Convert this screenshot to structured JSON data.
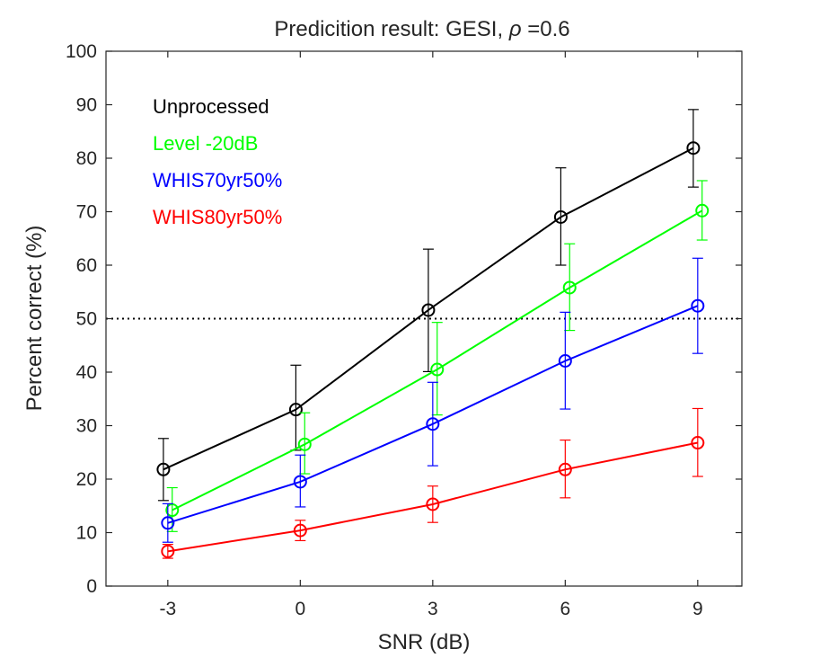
{
  "chart_data": {
    "type": "line",
    "title_main": "Predicition result: GESI, ",
    "title_symbol": "ρ",
    "title_value": " =0.6",
    "xlabel": "SNR (dB)",
    "ylabel": "Percent correct (%)",
    "xlim": [
      -4.4,
      10.0
    ],
    "ylim": [
      0,
      100
    ],
    "xticks": [
      -3,
      0,
      3,
      6,
      9
    ],
    "xtick_labels": [
      "-3",
      "0",
      "3",
      "6",
      "9"
    ],
    "yticks": [
      0,
      10,
      20,
      30,
      40,
      50,
      60,
      70,
      80,
      90,
      100
    ],
    "ytick_labels": [
      "0",
      "10",
      "20",
      "30",
      "40",
      "50",
      "60",
      "70",
      "80",
      "90",
      "100"
    ],
    "reference_line": {
      "y": 50,
      "style": "dotted",
      "color": "#000000"
    },
    "legend_position": "top-left",
    "series": [
      {
        "name": "Unprocessed",
        "color": "#000000",
        "x": [
          -3.1,
          -0.1,
          2.9,
          5.9,
          8.9
        ],
        "values": [
          21.8,
          33.0,
          51.6,
          69.0,
          81.9
        ],
        "err_low": [
          5.8,
          7.6,
          11.5,
          9.0,
          7.3
        ],
        "err_high": [
          5.8,
          8.3,
          11.4,
          9.2,
          7.2
        ]
      },
      {
        "name": "Level -20dB",
        "color": "#00ff00",
        "x": [
          -2.9,
          0.1,
          3.1,
          6.1,
          9.1
        ],
        "values": [
          14.2,
          26.5,
          40.5,
          55.8,
          70.2
        ],
        "err_low": [
          4.0,
          5.5,
          8.5,
          8.0,
          5.5
        ],
        "err_high": [
          4.2,
          5.9,
          8.8,
          8.2,
          5.6
        ]
      },
      {
        "name": "WHIS70yr50%",
        "color": "#0000ff",
        "x": [
          -3.0,
          0.0,
          3.0,
          6.0,
          9.0
        ],
        "values": [
          11.8,
          19.5,
          30.3,
          42.1,
          52.4
        ],
        "err_low": [
          3.6,
          4.7,
          7.8,
          9.0,
          8.9
        ],
        "err_high": [
          3.6,
          5.0,
          7.8,
          9.1,
          8.9
        ]
      },
      {
        "name": "WHIS80yr50%",
        "color": "#ff0000",
        "x": [
          -3.0,
          0.0,
          3.0,
          6.0,
          9.0
        ],
        "values": [
          6.5,
          10.4,
          15.3,
          21.8,
          26.8
        ],
        "err_low": [
          1.3,
          1.9,
          3.4,
          5.3,
          6.3
        ],
        "err_high": [
          1.3,
          1.9,
          3.4,
          5.5,
          6.4
        ]
      }
    ]
  }
}
